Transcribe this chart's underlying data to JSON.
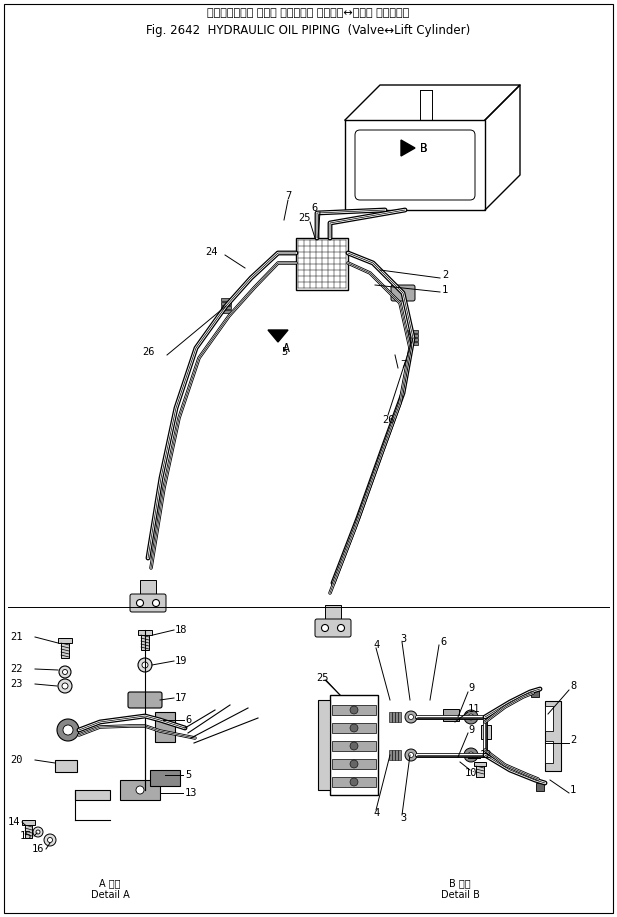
{
  "title_japanese": "ハイドロリック オイル パイピング （バルブ↔リフト シリンダ）",
  "title_english": "Fig. 2642  HYDRAULIC OIL PIPING  (Valve↔Lift Cylinder)",
  "detail_a_label": "A 詳細\nDetail A",
  "detail_b_label": "B 詳細\nDetail B",
  "bg_color": "#ffffff",
  "line_color": "#000000",
  "figure_width": 6.17,
  "figure_height": 9.17
}
